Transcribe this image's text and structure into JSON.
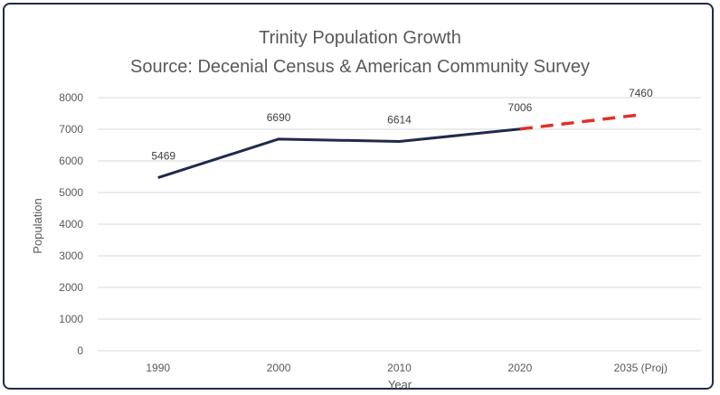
{
  "chart_data": {
    "type": "line",
    "title": "Trinity Population Growth",
    "subtitle": "Source: Decenial Census & American Community Survey",
    "xlabel": "Year",
    "ylabel": "Population",
    "categories": [
      "1990",
      "2000",
      "2010",
      "2020",
      "2035 (Proj)"
    ],
    "ylim": [
      0,
      8000
    ],
    "yticks": [
      0,
      1000,
      2000,
      3000,
      4000,
      5000,
      6000,
      7000,
      8000
    ],
    "grid": true,
    "series": [
      {
        "values": [
          5469,
          6690,
          6614,
          7006,
          null
        ],
        "color": "#1f2a4d",
        "style": "solid"
      },
      {
        "values": [
          null,
          null,
          null,
          7006,
          7460
        ],
        "color": "#e0302a",
        "style": "dashed"
      }
    ],
    "data_labels": [
      "5469",
      "6690",
      "6614",
      "7006",
      "7460"
    ]
  }
}
